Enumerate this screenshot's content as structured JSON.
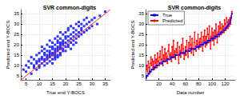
{
  "chart_data": [
    {
      "type": "scatter",
      "title": "SVR common-digits",
      "xlabel": "True end Y-BOCS",
      "ylabel": "Predicted end Y-BOCS",
      "xlim": [
        3,
        37
      ],
      "xticks": [
        5,
        10,
        15,
        20,
        25,
        30,
        35
      ],
      "ylim": [
        3,
        37
      ],
      "yticks": [
        5,
        10,
        15,
        20,
        25,
        30,
        35
      ],
      "grid": true,
      "series": [
        {
          "type": "scatter",
          "color": "#0000ff",
          "marker": "square",
          "x": [
            4,
            5,
            5,
            6,
            6,
            7,
            7,
            7,
            8,
            8,
            8,
            9,
            9,
            9,
            9,
            10,
            10,
            10,
            10,
            10,
            11,
            11,
            11,
            11,
            11,
            12,
            12,
            12,
            12,
            12,
            12,
            13,
            13,
            13,
            13,
            13,
            13,
            14,
            14,
            14,
            14,
            14,
            14,
            14,
            15,
            15,
            15,
            15,
            15,
            15,
            15,
            16,
            16,
            16,
            16,
            16,
            16,
            16,
            16,
            17,
            17,
            17,
            17,
            17,
            17,
            17,
            17,
            18,
            18,
            18,
            18,
            18,
            18,
            18,
            18,
            19,
            19,
            19,
            19,
            19,
            19,
            20,
            20,
            20,
            20,
            20,
            20,
            21,
            21,
            21,
            21,
            21,
            21,
            22,
            22,
            22,
            22,
            22,
            23,
            23,
            23,
            23,
            23,
            24,
            24,
            24,
            24,
            24,
            25,
            25,
            25,
            25,
            26,
            26,
            26,
            26,
            27,
            27,
            27,
            28,
            28,
            28,
            29,
            29,
            30,
            30,
            31,
            32,
            33,
            35
          ],
          "values": [
            8,
            10,
            7,
            12,
            9,
            6,
            11,
            14,
            10,
            13,
            9,
            12,
            8,
            15,
            11,
            13,
            9,
            16,
            12,
            10,
            14,
            17,
            11,
            13,
            19,
            10,
            15,
            13,
            18,
            12,
            16,
            14,
            11,
            17,
            20,
            13,
            15,
            16,
            12,
            19,
            15,
            22,
            14,
            17,
            13,
            18,
            16,
            21,
            15,
            11,
            19,
            17,
            14,
            20,
            16,
            23,
            18,
            13,
            15,
            19,
            15,
            22,
            17,
            14,
            21,
            18,
            24,
            20,
            16,
            23,
            18,
            15,
            21,
            26,
            19,
            17,
            22,
            20,
            25,
            18,
            21,
            23,
            19,
            26,
            21,
            17,
            24,
            22,
            27,
            19,
            24,
            20,
            28,
            25,
            21,
            29,
            23,
            18,
            24,
            28,
            22,
            26,
            20,
            27,
            23,
            30,
            25,
            21,
            26,
            29,
            24,
            31,
            28,
            25,
            30,
            27,
            29,
            26,
            32,
            30,
            27,
            33,
            31,
            28,
            32,
            29,
            33,
            30,
            34,
            36
          ]
        },
        {
          "type": "line",
          "color": "#ff0000",
          "marker": "none",
          "x": [
            3,
            37
          ],
          "values": [
            3,
            37
          ]
        }
      ]
    },
    {
      "type": "line",
      "title": "SVR common-digits",
      "xlabel": "Data number",
      "ylabel": "Predicted end Y-BOCS",
      "xlim": [
        0,
        135
      ],
      "xticks": [
        20,
        40,
        60,
        80,
        100,
        120
      ],
      "ylim": [
        3,
        37
      ],
      "yticks": [
        5,
        10,
        15,
        20,
        25,
        30,
        35
      ],
      "grid": true,
      "legend": "upper left",
      "x": [
        1,
        2,
        3,
        4,
        5,
        6,
        7,
        8,
        9,
        10,
        11,
        12,
        13,
        14,
        15,
        16,
        17,
        18,
        19,
        20,
        21,
        22,
        23,
        24,
        25,
        26,
        27,
        28,
        29,
        30,
        31,
        32,
        33,
        34,
        35,
        36,
        37,
        38,
        39,
        40,
        41,
        42,
        43,
        44,
        45,
        46,
        47,
        48,
        49,
        50,
        51,
        52,
        53,
        54,
        55,
        56,
        57,
        58,
        59,
        60,
        61,
        62,
        63,
        64,
        65,
        66,
        67,
        68,
        69,
        70,
        71,
        72,
        73,
        74,
        75,
        76,
        77,
        78,
        79,
        80,
        81,
        82,
        83,
        84,
        85,
        86,
        87,
        88,
        89,
        90,
        91,
        92,
        93,
        94,
        95,
        96,
        97,
        98,
        99,
        100,
        101,
        102,
        103,
        104,
        105,
        106,
        107,
        108,
        109,
        110,
        111,
        112,
        113,
        114,
        115,
        116,
        117,
        118,
        119,
        120,
        121,
        122,
        123,
        124,
        125,
        126,
        127,
        128,
        129,
        130
      ],
      "series": [
        {
          "name": "True",
          "color": "#0000ff",
          "marker": "square",
          "values": [
            4,
            5,
            5,
            6,
            6,
            7,
            7,
            7,
            8,
            8,
            8,
            9,
            9,
            9,
            9,
            10,
            10,
            10,
            10,
            10,
            11,
            11,
            11,
            11,
            11,
            12,
            12,
            12,
            12,
            12,
            12,
            13,
            13,
            13,
            13,
            13,
            13,
            14,
            14,
            14,
            14,
            14,
            14,
            14,
            15,
            15,
            15,
            15,
            15,
            15,
            15,
            16,
            16,
            16,
            16,
            16,
            16,
            16,
            16,
            17,
            17,
            17,
            17,
            17,
            17,
            17,
            17,
            18,
            18,
            18,
            18,
            18,
            18,
            18,
            18,
            19,
            19,
            19,
            19,
            19,
            19,
            20,
            20,
            20,
            20,
            20,
            20,
            21,
            21,
            21,
            21,
            21,
            21,
            22,
            22,
            22,
            22,
            22,
            23,
            23,
            23,
            23,
            23,
            24,
            24,
            24,
            24,
            24,
            25,
            25,
            25,
            25,
            26,
            26,
            26,
            26,
            27,
            27,
            27,
            28,
            28,
            28,
            29,
            29,
            30,
            30,
            31,
            32,
            33,
            35
          ]
        },
        {
          "name": "Predicted",
          "color": "#ff0000",
          "marker": "circle",
          "values": [
            8,
            10,
            7,
            12,
            9,
            6,
            11,
            14,
            10,
            13,
            9,
            12,
            8,
            15,
            11,
            13,
            9,
            16,
            12,
            10,
            14,
            17,
            11,
            13,
            19,
            10,
            15,
            13,
            18,
            12,
            16,
            14,
            11,
            17,
            20,
            13,
            15,
            16,
            12,
            19,
            15,
            22,
            14,
            17,
            13,
            18,
            16,
            21,
            15,
            11,
            19,
            17,
            14,
            20,
            16,
            23,
            18,
            13,
            15,
            19,
            15,
            22,
            17,
            14,
            21,
            18,
            24,
            20,
            16,
            23,
            18,
            15,
            21,
            26,
            19,
            17,
            22,
            20,
            25,
            18,
            21,
            23,
            19,
            26,
            21,
            17,
            24,
            22,
            27,
            19,
            24,
            20,
            28,
            25,
            21,
            29,
            23,
            18,
            24,
            28,
            22,
            26,
            20,
            27,
            23,
            30,
            25,
            21,
            26,
            29,
            24,
            31,
            28,
            25,
            30,
            27,
            29,
            26,
            32,
            30,
            27,
            33,
            31,
            28,
            32,
            29,
            33,
            30,
            34,
            36
          ]
        }
      ]
    }
  ]
}
